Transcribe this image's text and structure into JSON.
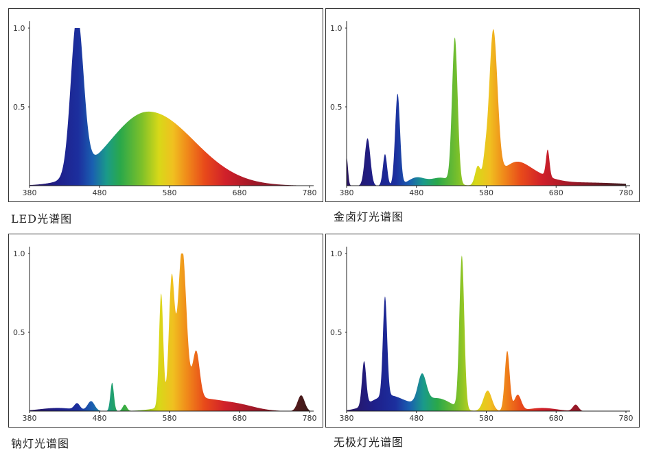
{
  "chart_data": [
    {
      "type": "area",
      "title": "LED光谱图",
      "x_ticks": [
        380,
        480,
        580,
        680,
        780
      ],
      "y_ticks": [
        "1.0",
        "0.5"
      ],
      "xlim": [
        380,
        780
      ],
      "ylim": [
        0,
        1.0
      ],
      "peaks": [
        {
          "center": 448,
          "height": 1.0,
          "width": 9
        },
        {
          "center": 550,
          "height": 0.47,
          "width": 55,
          "width_right": 65
        }
      ],
      "end_color": "#5a2030"
    },
    {
      "type": "area",
      "title": "金卤灯光谱图",
      "x_ticks": [
        380,
        480,
        580,
        680,
        780
      ],
      "y_ticks": [
        "1.0",
        "0.5"
      ],
      "xlim": [
        380,
        780
      ],
      "ylim": [
        0,
        1.0
      ],
      "peaks": [
        {
          "center": 380,
          "height": 0.18,
          "width": 2
        },
        {
          "center": 410,
          "height": 0.3,
          "width": 4
        },
        {
          "center": 435,
          "height": 0.2,
          "width": 3
        },
        {
          "center": 453,
          "height": 0.58,
          "width": 3.5
        },
        {
          "center": 480,
          "height": 0.05,
          "width": 12
        },
        {
          "center": 515,
          "height": 0.05,
          "width": 15
        },
        {
          "center": 535,
          "height": 0.92,
          "width": 4
        },
        {
          "center": 568,
          "height": 0.12,
          "width": 4
        },
        {
          "center": 578,
          "height": 0.1,
          "width": 3
        },
        {
          "center": 590,
          "height": 0.95,
          "width": 6
        },
        {
          "center": 620,
          "height": 0.12,
          "width": 20
        },
        {
          "center": 650,
          "height": 0.05,
          "width": 25
        },
        {
          "center": 668,
          "height": 0.17,
          "width": 2.5
        },
        {
          "center": 720,
          "height": 0.02,
          "width": 60
        }
      ],
      "end_color": "#3a1a1e"
    },
    {
      "type": "area",
      "title": "钠灯光谱图",
      "x_ticks": [
        380,
        480,
        580,
        680,
        780
      ],
      "y_ticks": [
        "1.0",
        "0.5"
      ],
      "xlim": [
        380,
        780
      ],
      "ylim": [
        0,
        1.0
      ],
      "peaks": [
        {
          "center": 420,
          "height": 0.02,
          "width": 25
        },
        {
          "center": 448,
          "height": 0.04,
          "width": 4
        },
        {
          "center": 468,
          "height": 0.06,
          "width": 5
        },
        {
          "center": 498,
          "height": 0.18,
          "width": 2.5
        },
        {
          "center": 516,
          "height": 0.04,
          "width": 3
        },
        {
          "center": 568,
          "height": 0.72,
          "width": 3
        },
        {
          "center": 583,
          "height": 0.78,
          "width": 4
        },
        {
          "center": 598,
          "height": 0.97,
          "width": 6
        },
        {
          "center": 618,
          "height": 0.3,
          "width": 5
        },
        {
          "center": 620,
          "height": 0.08,
          "width": 35
        },
        {
          "center": 680,
          "height": 0.03,
          "width": 25
        },
        {
          "center": 768,
          "height": 0.1,
          "width": 5
        }
      ],
      "end_color": "#3a1a18"
    },
    {
      "type": "area",
      "title": "无极灯光谱图",
      "x_ticks": [
        380,
        480,
        580,
        680,
        780
      ],
      "y_ticks": [
        "1.0",
        "0.5"
      ],
      "xlim": [
        380,
        780
      ],
      "ylim": [
        0,
        1.0
      ],
      "peaks": [
        {
          "center": 405,
          "height": 0.28,
          "width": 3
        },
        {
          "center": 435,
          "height": 0.63,
          "width": 3
        },
        {
          "center": 440,
          "height": 0.1,
          "width": 25
        },
        {
          "center": 488,
          "height": 0.18,
          "width": 6
        },
        {
          "center": 510,
          "height": 0.08,
          "width": 20
        },
        {
          "center": 545,
          "height": 0.97,
          "width": 3.5
        },
        {
          "center": 582,
          "height": 0.13,
          "width": 6
        },
        {
          "center": 610,
          "height": 0.38,
          "width": 3.5
        },
        {
          "center": 625,
          "height": 0.1,
          "width": 5
        },
        {
          "center": 660,
          "height": 0.02,
          "width": 20
        },
        {
          "center": 708,
          "height": 0.04,
          "width": 4
        }
      ],
      "end_color": "#3a1a1e"
    }
  ]
}
